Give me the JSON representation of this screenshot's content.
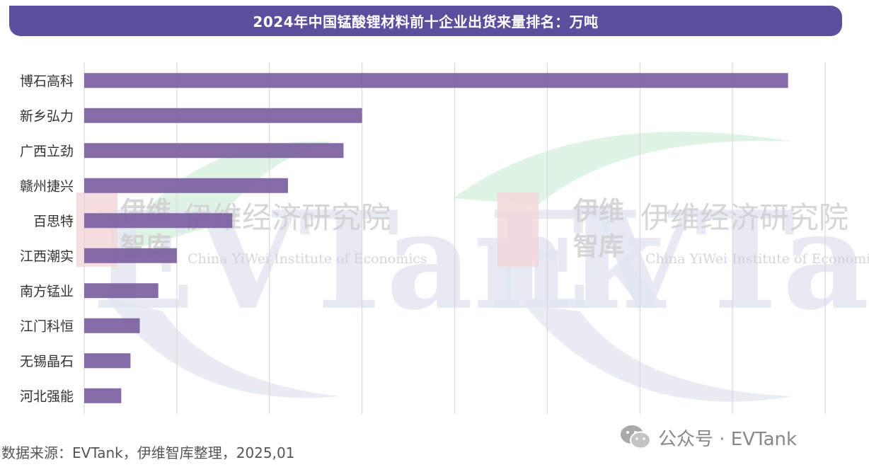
{
  "title": "2024年中国锰酸锂材料前十企业出货来量排名：万吨",
  "source": "数据来源：EVTank，伊维智库整理，2025,01",
  "watermark": {
    "logo_text": "EVTank",
    "cn_left": "伊维",
    "cn_left2": "智库",
    "cn_name": "伊维经济研究院",
    "en_name": "China YiWei Institute of Economics"
  },
  "wechat": {
    "icon": "wechat-icon",
    "label": "公众号 · EVTank"
  },
  "colors": {
    "title_bg": "#5a4f9d",
    "bar": "#7b5fa0",
    "grid": "#d9d9d9"
  },
  "chart_data": {
    "type": "bar",
    "orientation": "horizontal",
    "title": "2024年中国锰酸锂材料前十企业出货来量排名：万吨",
    "categories": [
      "博石高科",
      "新乡弘力",
      "广西立劲",
      "赣州捷兴",
      "百思特",
      "江西潮实",
      "南方锰业",
      "江门科恒",
      "无锡晶石",
      "河北强能"
    ],
    "values": [
      7.6,
      3.0,
      2.8,
      2.2,
      1.6,
      1.0,
      0.8,
      0.6,
      0.5,
      0.4
    ],
    "xlim": [
      0,
      8
    ],
    "grid": true,
    "gridline_count": 9,
    "legend": "none"
  }
}
